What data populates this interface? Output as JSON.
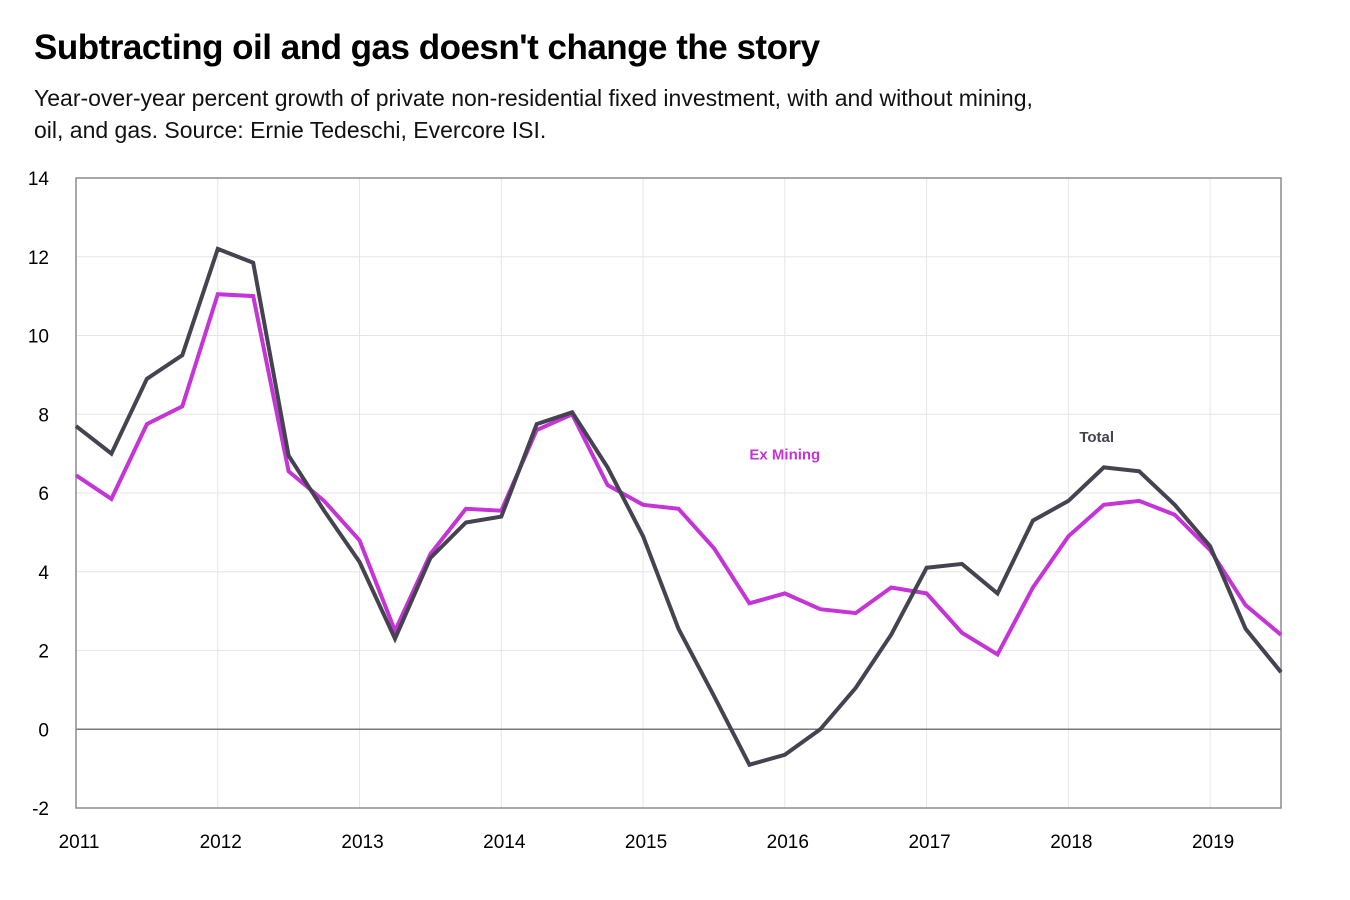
{
  "title": "Subtracting oil and gas doesn't change the story",
  "subtitle": "Year-over-year percent growth of private non-residential fixed investment, with and without mining, oil, and gas. Source: Ernie Tedeschi, Evercore ISI.",
  "chart_data": {
    "type": "line",
    "title": "Subtracting oil and gas doesn't change the story",
    "subtitle": "Year-over-year percent growth of private non-residential fixed investment, with and without mining, oil, and gas. Source: Ernie Tedeschi, Evercore ISI.",
    "xlabel": "",
    "ylabel": "",
    "xlim": [
      2011,
      2019.5
    ],
    "ylim": [
      -2,
      14
    ],
    "yticks": [
      -2,
      0,
      2,
      4,
      6,
      8,
      10,
      12,
      14
    ],
    "xticks": [
      2011,
      2012,
      2013,
      2014,
      2015,
      2016,
      2017,
      2018,
      2019
    ],
    "grid": true,
    "x": [
      2011.0,
      2011.25,
      2011.5,
      2011.75,
      2012.0,
      2012.25,
      2012.5,
      2012.75,
      2013.0,
      2013.25,
      2013.5,
      2013.75,
      2014.0,
      2014.25,
      2014.5,
      2014.75,
      2015.0,
      2015.25,
      2015.5,
      2015.75,
      2016.0,
      2016.25,
      2016.5,
      2016.75,
      2017.0,
      2017.25,
      2017.5,
      2017.75,
      2018.0,
      2018.25,
      2018.5,
      2018.75,
      2019.0,
      2019.25,
      2019.5
    ],
    "series": [
      {
        "name": "Total",
        "color": "#44434f",
        "values": [
          7.7,
          7.0,
          8.9,
          9.5,
          12.2,
          11.85,
          6.95,
          5.55,
          4.25,
          2.3,
          4.35,
          5.25,
          5.4,
          7.75,
          8.05,
          6.65,
          4.9,
          2.55,
          0.85,
          -0.9,
          -0.65,
          0.0,
          1.05,
          2.4,
          4.1,
          4.2,
          3.45,
          5.3,
          5.8,
          6.65,
          6.55,
          5.7,
          4.65,
          2.55,
          1.45
        ]
      },
      {
        "name": "Ex Mining",
        "color": "#c534d6",
        "values": [
          6.45,
          5.85,
          7.75,
          8.2,
          11.05,
          11.0,
          6.55,
          5.8,
          4.8,
          2.5,
          4.45,
          5.6,
          5.55,
          7.6,
          8.0,
          6.2,
          5.7,
          5.6,
          4.6,
          3.2,
          3.45,
          3.05,
          2.95,
          3.6,
          3.45,
          2.45,
          1.9,
          3.6,
          4.9,
          5.7,
          5.8,
          5.45,
          4.55,
          3.15,
          2.4
        ]
      }
    ],
    "annotations": [
      {
        "text": "Total",
        "series": "Total",
        "at_x": 2018.2,
        "at_y": 7.3
      },
      {
        "text": "Ex Mining",
        "series": "Ex Mining",
        "at_x": 2016.0,
        "at_y": 6.85
      }
    ]
  }
}
